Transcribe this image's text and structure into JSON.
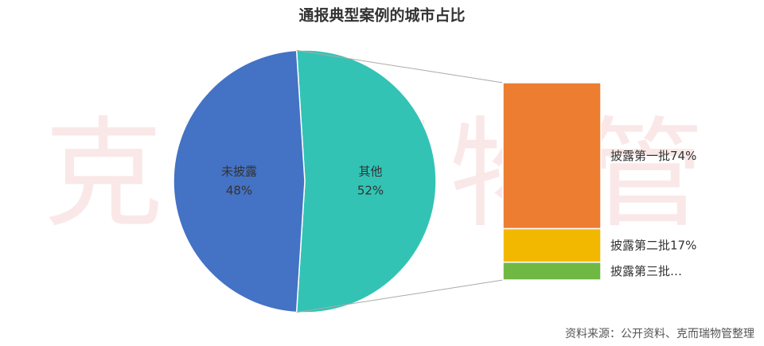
{
  "chart_data": {
    "type": "pie-of-bar",
    "title": "通报典型案例的城市占比",
    "pie": {
      "categories": [
        "其他",
        "未披露"
      ],
      "values": [
        52,
        48
      ],
      "value_labels": [
        "52%",
        "48%"
      ],
      "colors": [
        "#33c3b5",
        "#4472c4"
      ]
    },
    "bar": {
      "categories": [
        "披露第一批",
        "披露第二批",
        "披露第三批…"
      ],
      "values": [
        74,
        17,
        9
      ],
      "value_labels": [
        "74%",
        "17%",
        null
      ],
      "colors": [
        "#ed7d31",
        "#f2b800",
        "#70b844"
      ]
    },
    "watermark": "克而瑞物管",
    "source": "资料来源：公开资料、克而瑞物管整理"
  }
}
